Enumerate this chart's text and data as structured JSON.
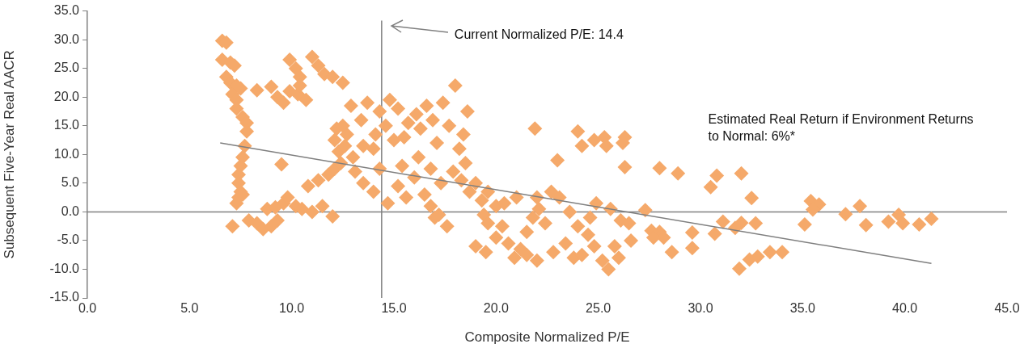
{
  "chart_data": {
    "type": "scatter",
    "xlabel": "Composite Normalized P/E",
    "ylabel": "Subsequent Five-Year Real AACR",
    "xlim": [
      0,
      45
    ],
    "ylim": [
      -15,
      35
    ],
    "xticks": [
      {
        "value": 0,
        "label": "0.0"
      },
      {
        "value": 5,
        "label": "5.0"
      },
      {
        "value": 10,
        "label": "10.0"
      },
      {
        "value": 15,
        "label": "15.0"
      },
      {
        "value": 20,
        "label": "20.0"
      },
      {
        "value": 25,
        "label": "25.0"
      },
      {
        "value": 30,
        "label": "30.0"
      },
      {
        "value": 35,
        "label": "35.0"
      },
      {
        "value": 40,
        "label": "40.0"
      },
      {
        "value": 45,
        "label": "45.0"
      }
    ],
    "yticks": [
      {
        "value": -15,
        "label": "-15.0"
      },
      {
        "value": -10,
        "label": "-10.0"
      },
      {
        "value": -5,
        "label": "-5.0"
      },
      {
        "value": 0,
        "label": "0.0"
      },
      {
        "value": 5,
        "label": "5.0"
      },
      {
        "value": 10,
        "label": "10.0"
      },
      {
        "value": 15,
        "label": "15.0"
      },
      {
        "value": 20,
        "label": "20.0"
      },
      {
        "value": 25,
        "label": "25.0"
      },
      {
        "value": 30,
        "label": "30.0"
      },
      {
        "value": 35,
        "label": "35.0"
      }
    ],
    "marker": "diamond",
    "legend": false,
    "series": [
      {
        "type": "scatter",
        "color": "#f5a96a",
        "x": [
          6.6,
          6.8,
          6.6,
          7.0,
          7.2,
          6.8,
          7.0,
          7.3,
          7.5,
          7.1,
          7.3,
          7.3,
          7.6,
          7.8,
          7.8,
          7.7,
          7.6,
          7.5,
          7.4,
          7.4,
          7.5,
          7.4,
          7.3,
          7.6,
          7.1,
          7.9,
          8.3,
          8.6,
          9.0,
          9.3,
          8.8,
          9.2,
          9.6,
          9.8,
          10.2,
          10.5,
          11.0,
          11.5,
          12.0,
          10.8,
          11.3,
          11.8,
          12.1,
          12.4,
          8.3,
          9.0,
          9.3,
          9.6,
          9.9,
          10.3,
          10.7,
          9.9,
          10.2,
          10.4,
          10.4,
          11.0,
          11.3,
          11.6,
          12.0,
          12.5,
          9.5,
          12.2,
          12.5,
          12.7,
          12.9,
          12.1,
          12.3,
          12.6,
          13.0,
          13.5,
          13.1,
          13.5,
          14.0,
          14.3,
          14.0,
          13.4,
          13.7,
          14.3,
          14.6,
          14.1,
          14.8,
          15.2,
          15.0,
          15.5,
          15.7,
          16.1,
          16.3,
          16.6,
          16.9,
          17.1,
          17.4,
          17.7,
          18.0,
          18.6,
          18.4,
          18.2,
          15.2,
          15.6,
          14.7,
          16.0,
          16.5,
          16.8,
          17.2,
          17.6,
          17.0,
          15.4,
          16.2,
          16.8,
          17.3,
          17.9,
          18.3,
          18.7,
          18.5,
          19.0,
          19.3,
          19.6,
          20.0,
          19.4,
          19.6,
          19.0,
          19.5,
          20.0,
          20.3,
          20.6,
          20.9,
          21.2,
          21.5,
          21.8,
          22.1,
          22.0,
          22.4,
          20.4,
          21.0,
          21.5,
          22.0,
          22.8,
          23.4,
          23.8,
          24.2,
          24.5,
          24.8,
          25.2,
          25.5,
          25.8,
          26.0,
          26.6,
          24.0,
          24.6,
          24.9,
          25.6,
          26.1,
          23.6,
          23.1,
          22.7,
          21.9,
          23.0,
          24.0,
          24.2,
          24.8,
          25.3,
          25.4,
          26.3,
          26.2,
          26.3,
          26.5,
          27.3,
          28.0,
          28.2,
          28.0,
          28.9,
          30.8,
          30.5,
          32.0,
          32.5,
          27.6,
          27.7,
          29.6,
          28.6,
          29.6,
          30.7,
          31.1,
          31.7,
          32.0,
          32.7,
          31.9,
          32.4,
          32.8,
          33.4,
          34.0,
          35.1,
          35.4,
          35.8,
          35.5,
          37.1,
          37.8,
          38.1,
          39.2,
          39.7,
          39.9,
          40.7,
          41.3
        ],
        "values": [
          29.8,
          29.5,
          26.5,
          26.0,
          25.5,
          23.5,
          22.5,
          22.0,
          21.5,
          20.5,
          19.5,
          18.0,
          16.5,
          15.5,
          14.0,
          11.5,
          9.5,
          8.0,
          6.5,
          5.0,
          3.5,
          2.5,
          1.5,
          3.0,
          -2.5,
          -1.5,
          -2.0,
          -3.0,
          -2.5,
          -1.5,
          0.5,
          0.8,
          1.5,
          2.5,
          1.0,
          0.5,
          0.0,
          1.0,
          -0.8,
          4.5,
          5.5,
          6.5,
          7.5,
          8.5,
          21.2,
          21.8,
          20.0,
          19.0,
          21.0,
          20.5,
          19.5,
          26.5,
          25.0,
          23.5,
          22.0,
          27.0,
          25.5,
          24.0,
          23.5,
          22.5,
          8.3,
          14.5,
          15.0,
          13.5,
          18.5,
          12.5,
          10.5,
          11.5,
          9.5,
          11.5,
          7.0,
          5.0,
          3.5,
          7.5,
          11.0,
          16.0,
          19.0,
          17.5,
          15.0,
          13.5,
          19.5,
          18.0,
          12.5,
          13.0,
          15.5,
          17.0,
          14.5,
          18.5,
          16.0,
          12.0,
          19.0,
          15.0,
          22.0,
          17.5,
          13.5,
          11.0,
          4.5,
          2.5,
          1.5,
          6.0,
          3.0,
          1.0,
          -0.5,
          -2.5,
          -1.0,
          8.0,
          9.5,
          7.5,
          5.0,
          7.0,
          5.5,
          3.5,
          8.5,
          5.0,
          2.0,
          3.5,
          1.0,
          -0.5,
          -2.0,
          -6.0,
          -7.0,
          -4.5,
          -2.5,
          -5.5,
          -8.0,
          -6.5,
          -3.5,
          -1.0,
          0.5,
          2.5,
          -2.0,
          1.5,
          2.5,
          -7.5,
          -8.5,
          -7.0,
          -5.5,
          -8.0,
          -7.5,
          -4.0,
          -6.0,
          -8.5,
          -10.0,
          -6.0,
          -8.0,
          -5.0,
          -2.5,
          -1.0,
          1.5,
          0.5,
          -1.5,
          0.0,
          2.5,
          3.5,
          14.5,
          9.0,
          14.0,
          11.5,
          12.5,
          13.0,
          11.5,
          13.0,
          12.0,
          7.8,
          -2.0,
          0.3,
          -3.5,
          -4.5,
          7.6,
          6.7,
          6.3,
          4.3,
          6.7,
          2.4,
          -3.3,
          -4.5,
          -3.6,
          -7.0,
          -6.3,
          -3.8,
          -1.7,
          -2.8,
          -1.9,
          -2.0,
          -9.9,
          -8.3,
          -7.8,
          -7.0,
          -7.0,
          -2.2,
          1.9,
          1.3,
          0.4,
          -0.4,
          1.0,
          -2.3,
          -1.7,
          -0.5,
          -2.0,
          -2.2,
          -1.2
        ]
      },
      {
        "type": "line",
        "color": "#7f7f7f",
        "x": [
          6.5,
          41.3
        ],
        "values": [
          12.0,
          -9.0
        ],
        "marker": "none"
      }
    ],
    "ref_lines": [
      {
        "axis": "x",
        "value": 14.4,
        "color": "#808080"
      },
      {
        "axis": "y",
        "value": 0,
        "color": "#808080"
      }
    ],
    "annotations": [
      "Current Normalized P/E: 14.4",
      "Estimated Real Return if Environment Returns to Normal: 6%*"
    ]
  }
}
